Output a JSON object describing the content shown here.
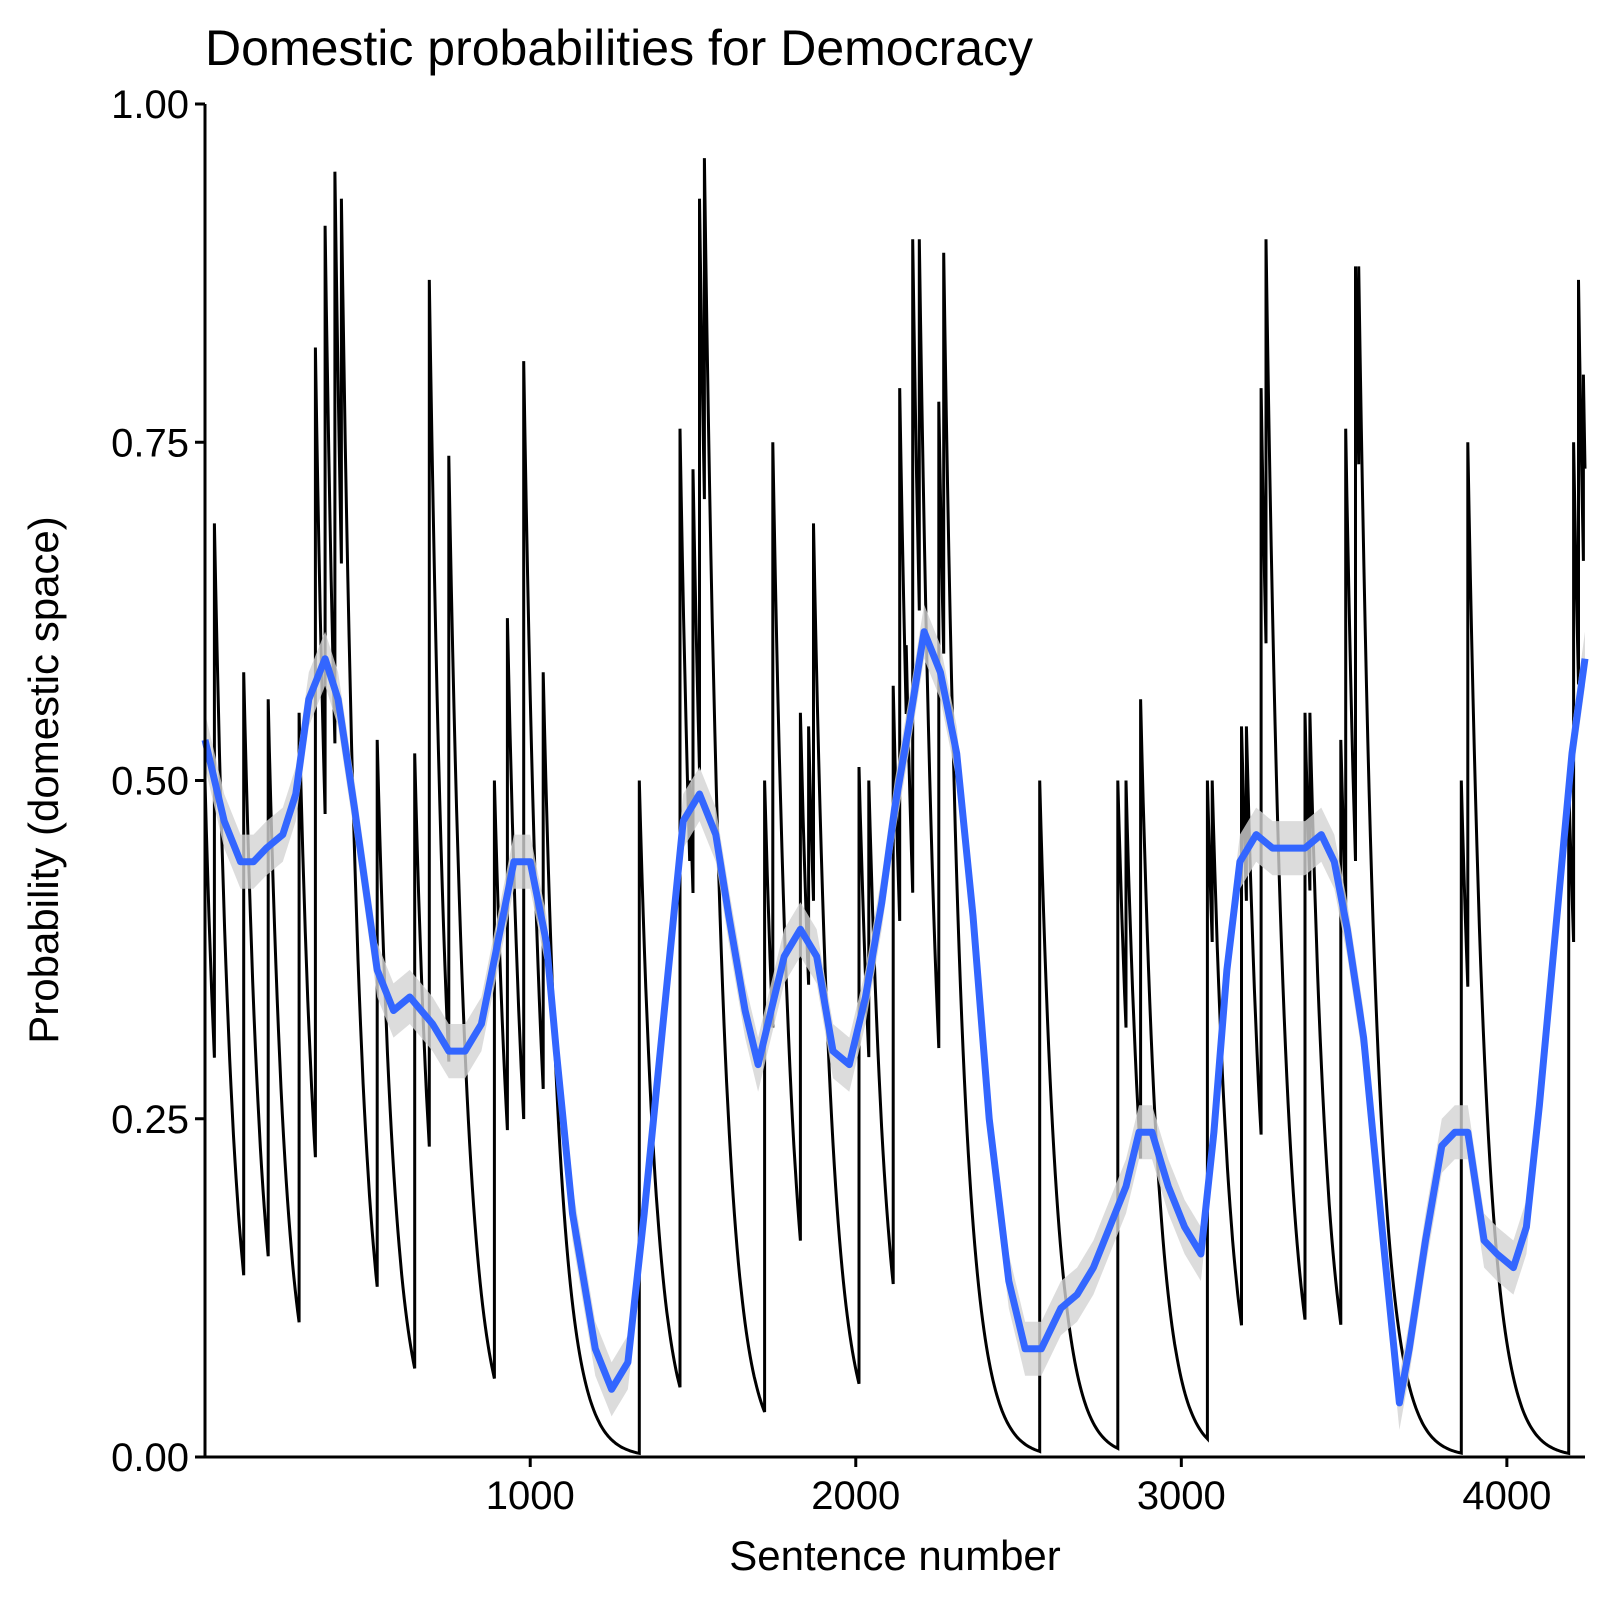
{
  "chart_data": {
    "type": "line",
    "title": "Domestic probabilities for Democracy",
    "xlabel": "Sentence number",
    "ylabel": "Probability (domestic space)",
    "xlim": [
      1,
      4240
    ],
    "ylim": [
      0,
      1
    ],
    "xticks": [
      1000,
      2000,
      3000,
      4000
    ],
    "yticks": [
      "0.00",
      "0.25",
      "0.50",
      "0.75",
      "1.00"
    ],
    "grid": false,
    "legend": "none",
    "colors": {
      "raw": "#000000",
      "smooth": "#3366ff",
      "band": "#d3d3d3"
    },
    "raw_peaks": {
      "description_note": "",
      "x": [
        1,
        30,
        120,
        195,
        290,
        340,
        370,
        400,
        420,
        530,
        645,
        690,
        750,
        890,
        930,
        980,
        1040,
        1335,
        1460,
        1490,
        1500,
        1520,
        1535,
        1720,
        1745,
        1830,
        1855,
        1870,
        2010,
        2040,
        2115,
        2135,
        2155,
        2175,
        2195,
        2255,
        2270,
        2565,
        2805,
        2830,
        2875,
        3080,
        3095,
        3185,
        3200,
        3245,
        3260,
        3380,
        3395,
        3490,
        3505,
        3535,
        3545,
        3860,
        3880,
        4190,
        4205,
        4220,
        4235
      ],
      "y": [
        0.5,
        0.69,
        0.58,
        0.56,
        0.55,
        0.82,
        0.91,
        0.95,
        0.93,
        0.53,
        0.52,
        0.87,
        0.74,
        0.5,
        0.62,
        0.81,
        0.58,
        0.5,
        0.76,
        0.5,
        0.73,
        0.93,
        0.96,
        0.5,
        0.75,
        0.55,
        0.54,
        0.69,
        0.51,
        0.5,
        0.57,
        0.79,
        0.6,
        0.9,
        0.9,
        0.78,
        0.89,
        0.5,
        0.5,
        0.5,
        0.56,
        0.5,
        0.5,
        0.54,
        0.54,
        0.79,
        0.9,
        0.55,
        0.55,
        0.53,
        0.76,
        0.88,
        0.88,
        0.5,
        0.75,
        0.5,
        0.75,
        0.87,
        0.8
      ]
    },
    "series": [
      {
        "x": [
          1,
          60,
          110,
          150,
          190,
          240,
          280,
          320,
          370,
          410,
          460,
          530,
          580,
          630,
          700,
          750,
          800,
          850,
          900,
          950,
          1000,
          1050,
          1080,
          1130,
          1200,
          1250,
          1300,
          1350,
          1420,
          1470,
          1520,
          1570,
          1610,
          1660,
          1700,
          1740,
          1780,
          1830,
          1880,
          1930,
          1980,
          2030,
          2080,
          2120,
          2170,
          2210,
          2260,
          2310,
          2360,
          2410,
          2470,
          2520,
          2570,
          2630,
          2680,
          2730,
          2780,
          2830,
          2870,
          2910,
          2960,
          3010,
          3060,
          3100,
          3140,
          3180,
          3230,
          3280,
          3320,
          3380,
          3430,
          3470,
          3510,
          3560,
          3620,
          3670,
          3700,
          3750,
          3800,
          3840,
          3880,
          3930,
          3970,
          4020,
          4060,
          4100,
          4150,
          4200,
          4240
        ],
        "values": [
          0.53,
          0.47,
          0.44,
          0.44,
          0.45,
          0.46,
          0.49,
          0.56,
          0.59,
          0.56,
          0.48,
          0.36,
          0.33,
          0.34,
          0.32,
          0.3,
          0.3,
          0.32,
          0.38,
          0.44,
          0.44,
          0.38,
          0.3,
          0.18,
          0.08,
          0.05,
          0.07,
          0.18,
          0.35,
          0.47,
          0.49,
          0.46,
          0.4,
          0.33,
          0.29,
          0.33,
          0.37,
          0.39,
          0.37,
          0.3,
          0.29,
          0.34,
          0.41,
          0.48,
          0.55,
          0.61,
          0.58,
          0.52,
          0.4,
          0.25,
          0.13,
          0.08,
          0.08,
          0.11,
          0.12,
          0.14,
          0.17,
          0.2,
          0.24,
          0.24,
          0.2,
          0.17,
          0.15,
          0.24,
          0.36,
          0.44,
          0.46,
          0.45,
          0.45,
          0.45,
          0.46,
          0.44,
          0.39,
          0.31,
          0.16,
          0.04,
          0.08,
          0.16,
          0.23,
          0.24,
          0.24,
          0.16,
          0.15,
          0.14,
          0.17,
          0.26,
          0.39,
          0.52,
          0.59
        ],
        "ci_halfwidth": 0.02
      }
    ]
  }
}
